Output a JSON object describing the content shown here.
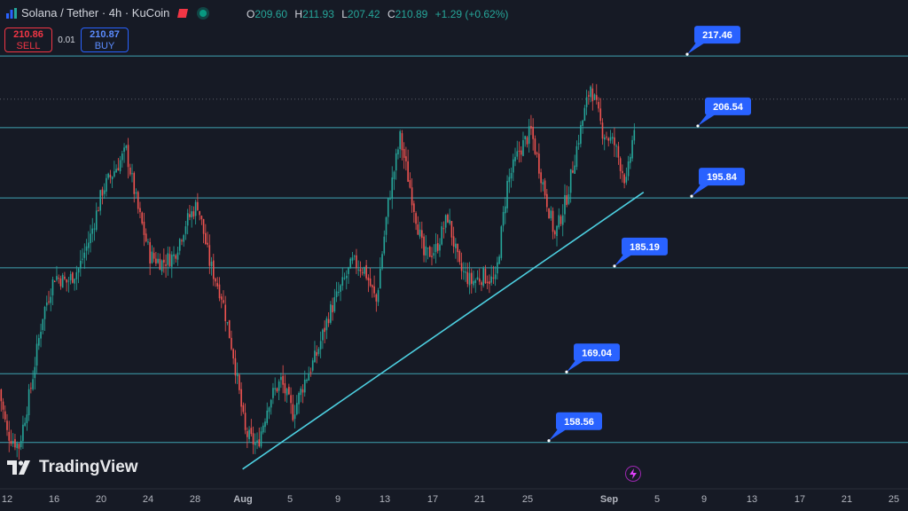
{
  "header": {
    "symbol_title": "Solana / Tether · 4h · KuCoin",
    "ohlc": {
      "o_label": "O",
      "o": "209.60",
      "h_label": "H",
      "h": "211.93",
      "l_label": "L",
      "l": "207.42",
      "c_label": "C",
      "c": "210.89",
      "change": "+1.29 (+0.62%)"
    }
  },
  "trade": {
    "sell_price": "210.86",
    "sell_label": "SELL",
    "spread": "0.01",
    "buy_price": "210.87",
    "buy_label": "BUY"
  },
  "branding": {
    "logo_text": "TradingView"
  },
  "colors": {
    "background": "#161a25",
    "up": "#26a69a",
    "down": "#ef5350",
    "level_line": "#4dd0e1",
    "label_bg": "#2962ff"
  },
  "icons": {
    "symbol": "chart-icon",
    "flash": "lightning-icon"
  },
  "chart_data": {
    "type": "candlestick",
    "x_ticks": [
      "12",
      "16",
      "20",
      "24",
      "28",
      "Aug",
      "5",
      "9",
      "13",
      "17",
      "21",
      "25",
      "Sep",
      "5",
      "9",
      "13",
      "17",
      "21",
      "25"
    ],
    "ylim": [
      151.5,
      226
    ],
    "horizontal_levels": [
      {
        "label": "217.46",
        "value": 217.46
      },
      {
        "label": "206.54",
        "value": 206.54
      },
      {
        "label": "195.84",
        "value": 195.84
      },
      {
        "label": "185.19",
        "value": 185.19
      },
      {
        "label": "169.04",
        "value": 169.04
      },
      {
        "label": "158.56",
        "value": 158.56
      }
    ],
    "dotted_price_line": 210.89,
    "trendline": {
      "start": {
        "date": "Aug 1",
        "value": 154.5
      },
      "end": {
        "date": "Sep 3",
        "value": 196.7
      }
    },
    "price_path": [
      [
        "Jul 11",
        170
      ],
      [
        "Jul 12",
        160
      ],
      [
        "Jul 13",
        158
      ],
      [
        "Jul 14",
        167
      ],
      [
        "Jul 15",
        178
      ],
      [
        "Jul 16",
        184
      ],
      [
        "Jul 17",
        183
      ],
      [
        "Jul 18",
        185
      ],
      [
        "Jul 19",
        190
      ],
      [
        "Jul 20",
        197
      ],
      [
        "Jul 21",
        200
      ],
      [
        "Jul 22",
        203
      ],
      [
        "Jul 23",
        194
      ],
      [
        "Jul 24",
        187
      ],
      [
        "Jul 25",
        186
      ],
      [
        "Jul 26",
        187
      ],
      [
        "Jul 27",
        192
      ],
      [
        "Jul 28",
        195
      ],
      [
        "Jul 29",
        186
      ],
      [
        "Jul 30",
        181
      ],
      [
        "Jul 31",
        172
      ],
      [
        "Aug 1",
        160
      ],
      [
        "Aug 2",
        158
      ],
      [
        "Aug 3",
        165
      ],
      [
        "Aug 4",
        168
      ],
      [
        "Aug 5",
        163
      ],
      [
        "Aug 6",
        168
      ],
      [
        "Aug 7",
        172
      ],
      [
        "Aug 8",
        178
      ],
      [
        "Aug 9",
        182
      ],
      [
        "Aug 10",
        186
      ],
      [
        "Aug 11",
        185
      ],
      [
        "Aug 12",
        180
      ],
      [
        "Aug 13",
        195
      ],
      [
        "Aug 14",
        205
      ],
      [
        "Aug 15",
        196
      ],
      [
        "Aug 16",
        187
      ],
      [
        "Aug 17",
        188
      ],
      [
        "Aug 18",
        193
      ],
      [
        "Aug 19",
        185
      ],
      [
        "Aug 20",
        183
      ],
      [
        "Aug 21",
        184
      ],
      [
        "Aug 22",
        183
      ],
      [
        "Aug 23",
        198
      ],
      [
        "Aug 24",
        203
      ],
      [
        "Aug 25",
        206
      ],
      [
        "Aug 26",
        198
      ],
      [
        "Aug 27",
        190
      ],
      [
        "Aug 28",
        196
      ],
      [
        "Aug 29",
        205
      ],
      [
        "Aug 30",
        213
      ],
      [
        "Aug 31",
        206
      ],
      [
        "Sep 1",
        204
      ],
      [
        "Sep 2",
        198
      ],
      [
        "Sep 3",
        210.89
      ]
    ]
  }
}
